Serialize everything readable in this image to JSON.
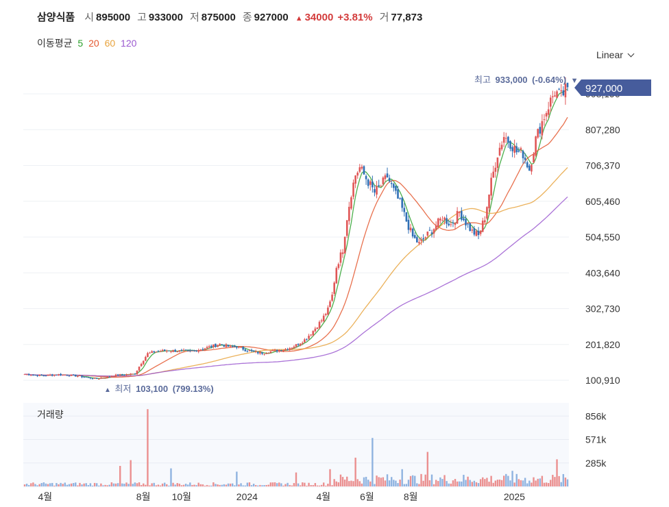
{
  "header": {
    "name": "삼양식품",
    "open_label": "시",
    "open": "895000",
    "high_label": "고",
    "high": "933000",
    "low_label": "저",
    "low": "875000",
    "close_label": "종",
    "close": "927000",
    "change_arrow": "▲",
    "change": "34000",
    "change_pct": "+3.81%",
    "volume_label": "거",
    "volume": "77,873"
  },
  "ma_legend": {
    "label": "이동평균",
    "periods": [
      {
        "period": "5",
        "color": "#2ca02c"
      },
      {
        "period": "20",
        "color": "#e4572e"
      },
      {
        "period": "60",
        "color": "#e8a33d"
      },
      {
        "period": "120",
        "color": "#9b59d0"
      }
    ]
  },
  "scale_selector": {
    "value": "Linear",
    "icon": "chevron-down-icon"
  },
  "colors": {
    "up": "#e05656",
    "down": "#2f6fb5",
    "price_tag_bg": "#465c9c",
    "volume_bg": "#f7f9fd",
    "annotation": "#5a6a9a"
  },
  "chart_data": {
    "type": "candlestick",
    "y_ticks": [
      "100,910",
      "201,820",
      "302,730",
      "403,640",
      "504,550",
      "605,460",
      "706,370",
      "807,280",
      "908,190"
    ],
    "ylim": [
      60000,
      970000
    ],
    "x_ticks": [
      "4월",
      "8월",
      "10월",
      "2024",
      "4월",
      "6월",
      "8월",
      "2025"
    ],
    "current_price_label": "927,000",
    "current_price": 927000,
    "high_annotation": {
      "label": "최고",
      "value": "933,000",
      "pct": "(-0.64%)",
      "marker": "▼"
    },
    "low_annotation": {
      "label": "최저",
      "value": "103,100",
      "pct": "(799.13%)",
      "marker": "▲"
    },
    "price_path": [
      [
        0,
        118000
      ],
      [
        8,
        114000
      ],
      [
        15,
        117000
      ],
      [
        20,
        116000
      ],
      [
        26,
        112000
      ],
      [
        30,
        108000
      ],
      [
        34,
        105000
      ],
      [
        38,
        109000
      ],
      [
        44,
        116000
      ],
      [
        52,
        119000
      ],
      [
        55,
        150000
      ],
      [
        58,
        176000
      ],
      [
        62,
        182000
      ],
      [
        68,
        185000
      ],
      [
        74,
        183000
      ],
      [
        78,
        182000
      ],
      [
        84,
        190000
      ],
      [
        88,
        196000
      ],
      [
        92,
        203000
      ],
      [
        96,
        196000
      ],
      [
        100,
        196000
      ],
      [
        104,
        187000
      ],
      [
        108,
        180000
      ],
      [
        112,
        178000
      ],
      [
        116,
        182000
      ],
      [
        120,
        186000
      ],
      [
        124,
        190000
      ],
      [
        128,
        200000
      ],
      [
        132,
        215000
      ],
      [
        136,
        240000
      ],
      [
        140,
        270000
      ],
      [
        143,
        300000
      ],
      [
        145,
        340000
      ],
      [
        147,
        420000
      ],
      [
        150,
        470000
      ],
      [
        152,
        560000
      ],
      [
        154,
        630000
      ],
      [
        156,
        680000
      ],
      [
        158,
        700000
      ],
      [
        161,
        670000
      ],
      [
        165,
        630000
      ],
      [
        168,
        650000
      ],
      [
        171,
        675000
      ],
      [
        174,
        635000
      ],
      [
        177,
        600000
      ],
      [
        180,
        550000
      ],
      [
        183,
        505000
      ],
      [
        186,
        485000
      ],
      [
        189,
        505000
      ],
      [
        193,
        530000
      ],
      [
        197,
        560000
      ],
      [
        201,
        540000
      ],
      [
        205,
        575000
      ],
      [
        208,
        545000
      ],
      [
        211,
        520000
      ],
      [
        214,
        508000
      ],
      [
        217,
        560000
      ],
      [
        220,
        660000
      ],
      [
        223,
        740000
      ],
      [
        226,
        790000
      ],
      [
        229,
        770000
      ],
      [
        232,
        745000
      ],
      [
        235,
        740000
      ],
      [
        238,
        695000
      ],
      [
        241,
        780000
      ],
      [
        244,
        830000
      ],
      [
        247,
        875000
      ],
      [
        250,
        915000
      ],
      [
        253,
        900000
      ],
      [
        256,
        927000
      ]
    ],
    "n_days": 257,
    "volume_ticks": [
      "856k",
      "571k",
      "285k"
    ],
    "volume_max": 1000000,
    "volume_spikes": [
      [
        58,
        940000
      ],
      [
        50,
        320000
      ],
      [
        164,
        590000
      ],
      [
        190,
        420000
      ],
      [
        251,
        330000
      ],
      [
        45,
        250000
      ],
      [
        69,
        220000
      ],
      [
        100,
        180000
      ],
      [
        128,
        170000
      ],
      [
        144,
        210000
      ],
      [
        156,
        350000
      ],
      [
        178,
        210000
      ],
      [
        230,
        190000
      ]
    ],
    "volume_panel_label": "거래량",
    "ma_periods": [
      5,
      20,
      60,
      120
    ]
  }
}
